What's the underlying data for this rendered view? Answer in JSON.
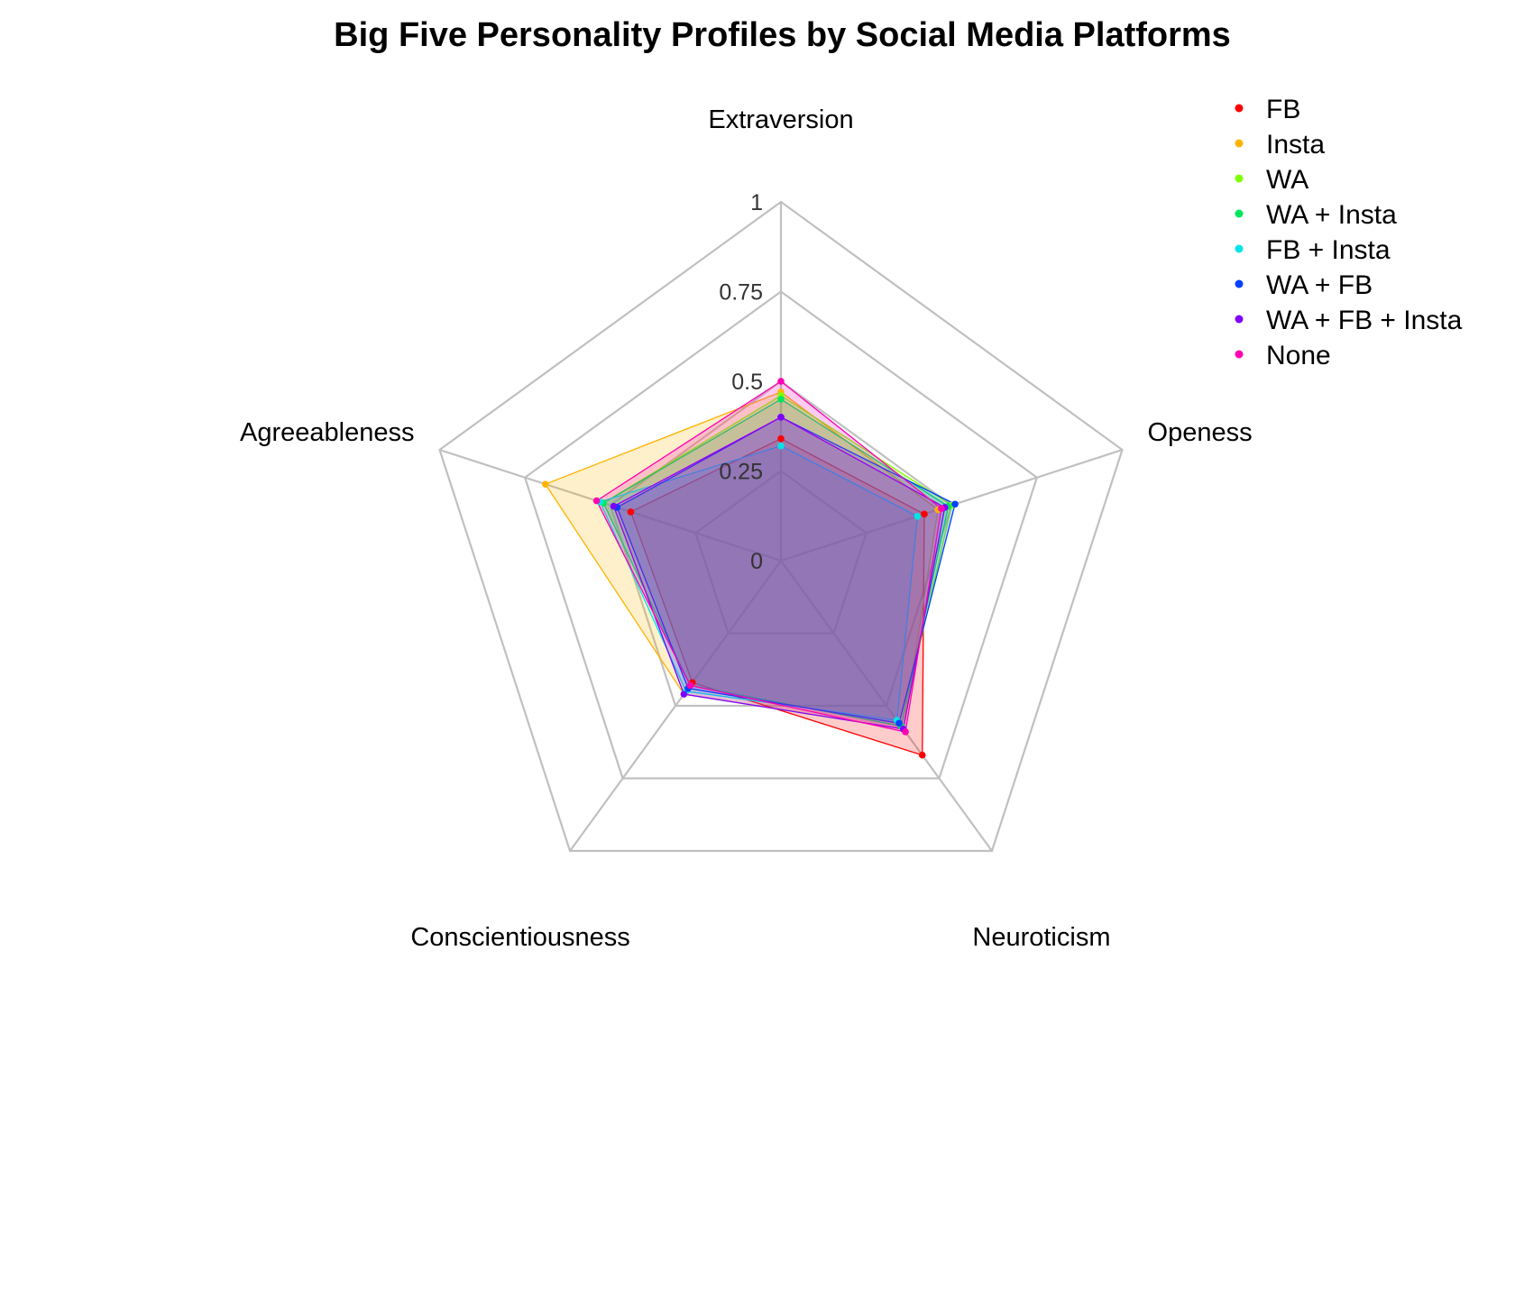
{
  "title": "Big Five Personality Profiles by Social Media Platforms",
  "chart_data": {
    "type": "radar",
    "title": "Big Five Personality Profiles by Social Media Platforms",
    "axes": [
      "Extraversion",
      "Openess",
      "Neuroticism",
      "Conscientiousness",
      "Agreeableness"
    ],
    "range": [
      0,
      1
    ],
    "ticks": [
      "0",
      "0.25",
      "0.5",
      "0.75",
      "1"
    ],
    "grid": true,
    "grid_color": "#c0c0c0",
    "legend_position": "top-right",
    "series": [
      {
        "name": "FB",
        "color": "#ff0000",
        "values": [
          0.34,
          0.42,
          0.67,
          0.42,
          0.44
        ]
      },
      {
        "name": "Insta",
        "color": "#ffb300",
        "values": [
          0.47,
          0.46,
          0.58,
          0.46,
          0.69
        ]
      },
      {
        "name": "WA",
        "color": "#80ff00",
        "values": [
          0.46,
          0.5,
          0.57,
          0.43,
          0.52
        ]
      },
      {
        "name": "WA + Insta",
        "color": "#00e65c",
        "values": [
          0.45,
          0.49,
          0.57,
          0.43,
          0.52
        ]
      },
      {
        "name": "FB + Insta",
        "color": "#00e6e6",
        "values": [
          0.32,
          0.4,
          0.55,
          0.45,
          0.53
        ]
      },
      {
        "name": "WA + FB",
        "color": "#0040ff",
        "values": [
          0.4,
          0.51,
          0.56,
          0.44,
          0.48
        ]
      },
      {
        "name": "WA + FB + Insta",
        "color": "#8000ff",
        "values": [
          0.4,
          0.48,
          0.58,
          0.46,
          0.49
        ]
      },
      {
        "name": "None",
        "color": "#ff00b3",
        "values": [
          0.5,
          0.47,
          0.59,
          0.43,
          0.54
        ]
      }
    ]
  }
}
